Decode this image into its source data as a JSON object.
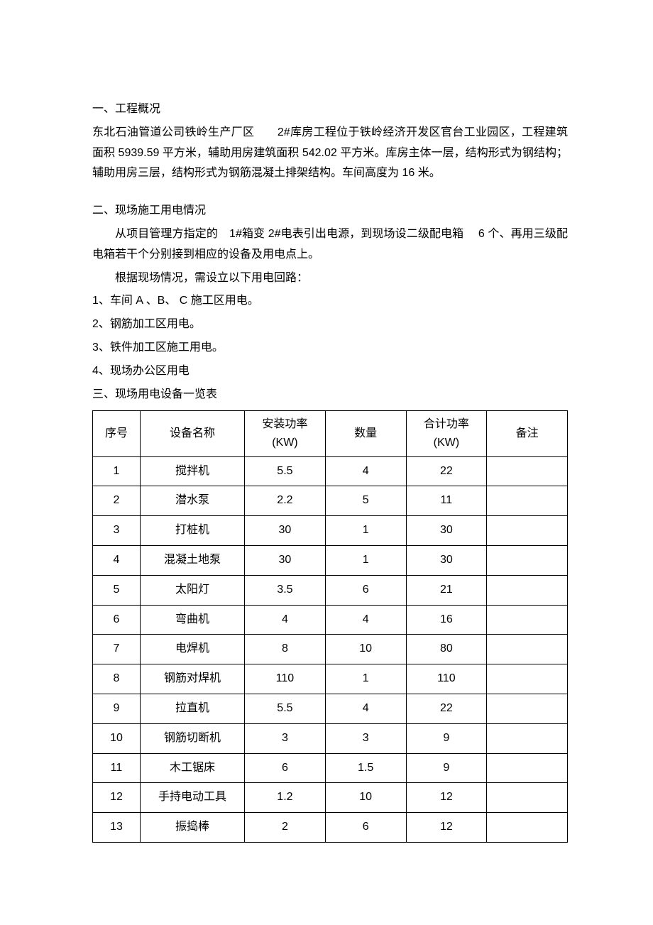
{
  "section1": {
    "title": "一、工程概况",
    "content": "东北石油管道公司铁岭生产厂区　　2#库房工程位于铁岭经济开发区官台工业园区，工程建筑面积 5939.59 平方米，辅助用房建筑面积 542.02 平方米。库房主体一层，结构形式为钢结构；辅助用房三层，结构形式为钢筋混凝土排架结构。车间高度为 16 米。"
  },
  "section2": {
    "title": "二、现场施工用电情况",
    "para1": "从项目管理方指定的　1#箱变 2#电表引出电源，到现场设二级配电箱　 6 个、再用三级配电箱若干个分别接到相应的设备及用电点上。",
    "para2": "根据现场情况，需设立以下用电回路：",
    "items": [
      "1、车间 A 、B、 C 施工区用电。",
      "2、钢筋加工区用电。",
      "3、铁件加工区施工用电。",
      "4、现场办公区用电"
    ]
  },
  "section3": {
    "title": "三、现场用电设备一览表",
    "table": {
      "columns": [
        {
          "line1": "序号",
          "line2": ""
        },
        {
          "line1": "设备名称",
          "line2": ""
        },
        {
          "line1": "安装功率",
          "line2": "(KW)"
        },
        {
          "line1": "数量",
          "line2": ""
        },
        {
          "line1": "合计功率",
          "line2": "(KW)"
        },
        {
          "line1": "备注",
          "line2": ""
        }
      ],
      "rows": [
        {
          "seq": "1",
          "name": "搅拌机",
          "power": "5.5",
          "qty": "4",
          "total": "22",
          "note": ""
        },
        {
          "seq": "2",
          "name": "潜水泵",
          "power": "2.2",
          "qty": "5",
          "total": "11",
          "note": ""
        },
        {
          "seq": "3",
          "name": "打桩机",
          "power": "30",
          "qty": "1",
          "total": "30",
          "note": ""
        },
        {
          "seq": "4",
          "name": "混凝土地泵",
          "power": "30",
          "qty": "1",
          "total": "30",
          "note": ""
        },
        {
          "seq": "5",
          "name": "太阳灯",
          "power": "3.5",
          "qty": "6",
          "total": "21",
          "note": ""
        },
        {
          "seq": "6",
          "name": "弯曲机",
          "power": "4",
          "qty": "4",
          "total": "16",
          "note": ""
        },
        {
          "seq": "7",
          "name": "电焊机",
          "power": "8",
          "qty": "10",
          "total": "80",
          "note": ""
        },
        {
          "seq": "8",
          "name": "钢筋对焊机",
          "power": "110",
          "qty": "1",
          "total": "110",
          "note": ""
        },
        {
          "seq": "9",
          "name": "拉直机",
          "power": "5.5",
          "qty": "4",
          "total": "22",
          "note": ""
        },
        {
          "seq": "10",
          "name": "钢筋切断机",
          "power": "3",
          "qty": "3",
          "total": "9",
          "note": ""
        },
        {
          "seq": "11",
          "name": "木工锯床",
          "power": "6",
          "qty": "1.5",
          "total": "9",
          "note": ""
        },
        {
          "seq": "12",
          "name": "手持电动工具",
          "power": "1.2",
          "qty": "10",
          "total": "12",
          "note": ""
        },
        {
          "seq": "13",
          "name": "振捣棒",
          "power": "2",
          "qty": "6",
          "total": "12",
          "note": ""
        }
      ]
    }
  }
}
